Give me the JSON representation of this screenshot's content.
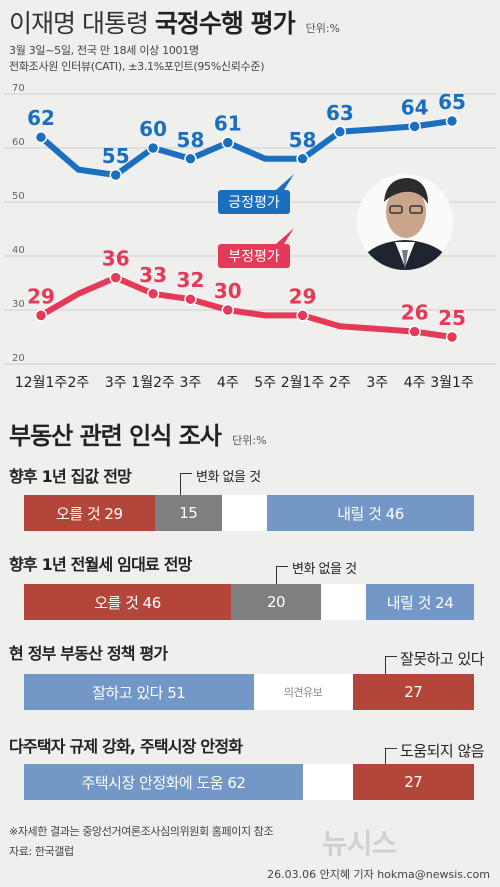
{
  "header": {
    "title_light": "이재명 대통령",
    "title_bold": "국정수행 평가",
    "unit": "단위:%",
    "line1": "3월 3일~5일, 전국 만 18세 이상 1001명",
    "line2": "전화조사원 인터뷰(CATI),  ±3.1%포인트(95%신뢰수준)"
  },
  "chart_data": {
    "type": "line",
    "categories": [
      "12월1주",
      "2주",
      "3주",
      "1월2주",
      "3주",
      "4주",
      "5주",
      "2월1주",
      "2주",
      "3주",
      "4주",
      "3월1주"
    ],
    "series": [
      {
        "name": "긍정평가",
        "color": "#1a6fc0",
        "values": [
          62,
          null,
          55,
          60,
          58,
          61,
          null,
          58,
          63,
          null,
          64,
          65
        ]
      },
      {
        "name": "부정평가",
        "color": "#e53958",
        "values": [
          29,
          null,
          36,
          33,
          32,
          30,
          null,
          29,
          null,
          null,
          26,
          25
        ]
      }
    ],
    "series_full": [
      {
        "name": "긍정평가",
        "values": [
          62,
          56,
          55,
          60,
          58,
          61,
          58,
          58,
          63,
          63.5,
          64,
          65
        ]
      },
      {
        "name": "부정평가",
        "values": [
          29,
          33,
          36,
          33,
          32,
          30,
          29,
          29,
          27,
          26.5,
          26,
          25
        ]
      }
    ],
    "yticks": [
      20,
      30,
      40,
      50,
      60,
      70
    ],
    "ylim": [
      20,
      70
    ],
    "grid": true
  },
  "section2": {
    "title": "부동산 관련 인식 조사",
    "unit": "단위:%"
  },
  "surveys": [
    {
      "title": "향후 1년 집값 전망",
      "segments": [
        {
          "label": "오를 것 29",
          "value": 29,
          "color": "#b4453a"
        },
        {
          "label": "15",
          "value": 15,
          "color": "#7f7f7f"
        },
        {
          "label": "",
          "value": 10,
          "color": "#ffffff"
        },
        {
          "label": "내릴 것 46",
          "value": 46,
          "color": "#7397c7"
        }
      ],
      "callout": "변화 없을 것"
    },
    {
      "title": "향후 1년 전월세 임대료 전망",
      "segments": [
        {
          "label": "오를 것 46",
          "value": 46,
          "color": "#b4453a"
        },
        {
          "label": "20",
          "value": 20,
          "color": "#7f7f7f"
        },
        {
          "label": "",
          "value": 10,
          "color": "#ffffff"
        },
        {
          "label": "내릴 것 24",
          "value": 24,
          "color": "#7397c7"
        }
      ],
      "callout": "변화 없을 것"
    },
    {
      "title": "현 정부 부동산 정책 평가",
      "segments": [
        {
          "label": "잘하고 있다 51",
          "value": 51,
          "color": "#7397c7"
        },
        {
          "label": "의견유보",
          "value": 22,
          "color": "#ffffff"
        },
        {
          "label": "27",
          "value": 27,
          "color": "#b4453a"
        }
      ],
      "callout": "잘못하고 있다"
    },
    {
      "title": "다주택자 규제 강화, 주택시장 안정화",
      "segments": [
        {
          "label": "주택시장 안정화에 도움  62",
          "value": 62,
          "color": "#7397c7"
        },
        {
          "label": "",
          "value": 11,
          "color": "#ffffff"
        },
        {
          "label": "27",
          "value": 27,
          "color": "#b4453a"
        }
      ],
      "callout": "도움되지 않음"
    }
  ],
  "footer": {
    "note": "※자세한 결과는 중앙선거여론조사심의위원회 홈페이지 참조",
    "source": "자료: 한국갤럽",
    "credit": "26.03.06 안지혜 기자 hokma@newsis.com",
    "logo": "뉴시스"
  }
}
